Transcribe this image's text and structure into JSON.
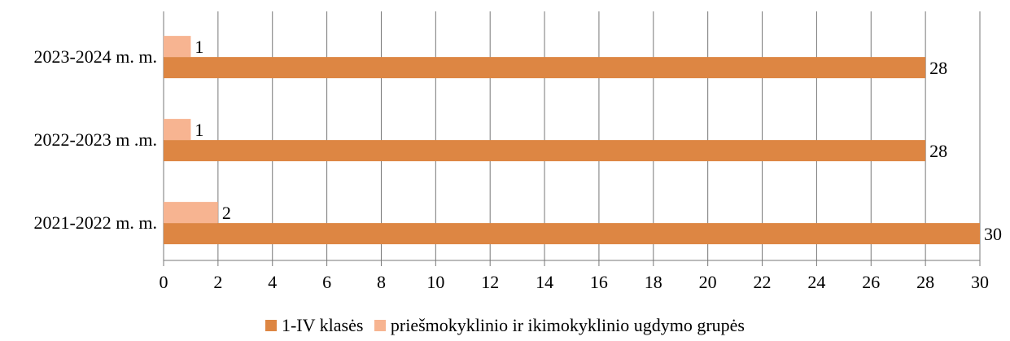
{
  "chart_data": {
    "type": "bar",
    "orientation": "horizontal",
    "categories": [
      "2023-2024 m. m.",
      "2022-2023 m .m.",
      "2021-2022 m. m."
    ],
    "series": [
      {
        "name": "1-IV klasės",
        "values": [
          28,
          28,
          30
        ],
        "color": "#DD8643"
      },
      {
        "name": "priešmokyklinio ir ikimokyklinio ugdymo grupės",
        "values": [
          1,
          1,
          2
        ],
        "color": "#F7B491"
      }
    ],
    "xlim": [
      0,
      30
    ],
    "xticks": [
      0,
      2,
      4,
      6,
      8,
      10,
      12,
      14,
      16,
      18,
      20,
      22,
      24,
      26,
      28,
      30
    ],
    "grid": "vertical",
    "legend_position": "bottom",
    "data_labels": true
  }
}
